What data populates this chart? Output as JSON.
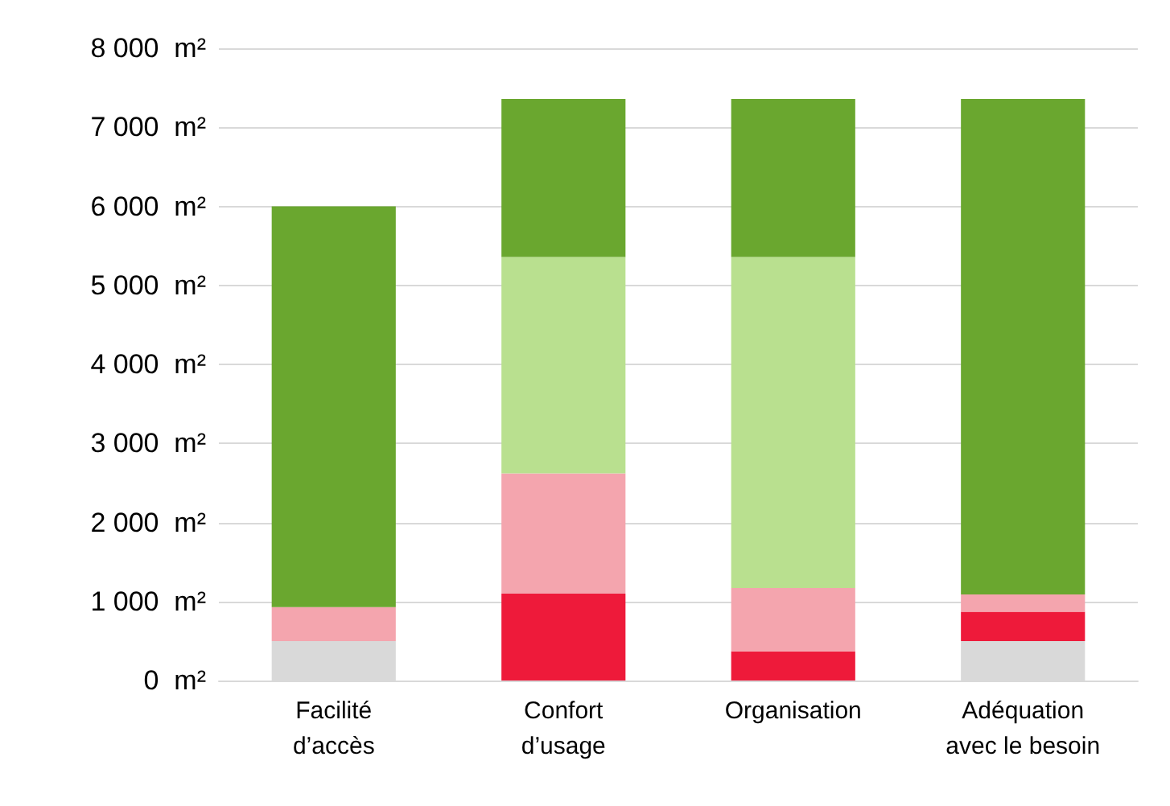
{
  "chart_data": {
    "type": "bar",
    "stacked": true,
    "grid": "y",
    "categories": [
      "Facilité\nd’accès",
      "Confort\nd’usage",
      "Organisation",
      "Adéquation\navec le besoin"
    ],
    "ylim": [
      0,
      8000
    ],
    "yticks": [
      {
        "value": 0,
        "label": "0  m²"
      },
      {
        "value": 1000,
        "label": "1 000  m²"
      },
      {
        "value": 2000,
        "label": "2 000  m²"
      },
      {
        "value": 3000,
        "label": "3 000  m²"
      },
      {
        "value": 4000,
        "label": "4 000  m²"
      },
      {
        "value": 5000,
        "label": "5 000  m²"
      },
      {
        "value": 6000,
        "label": "6 000  m²"
      },
      {
        "value": 7000,
        "label": "7 000  m²"
      },
      {
        "value": 8000,
        "label": "8 000  m²"
      }
    ],
    "series": [
      {
        "color": "#d9d9d9",
        "values": [
          500,
          null,
          null,
          500
        ]
      },
      {
        "color": "#ee1a3a",
        "values": [
          null,
          1100,
          370,
          370
        ]
      },
      {
        "color": "#f4a5ae",
        "values": [
          430,
          1520,
          800,
          220
        ]
      },
      {
        "color": "#b9e08f",
        "values": [
          null,
          2740,
          4190,
          null
        ]
      },
      {
        "color": "#6aa72f",
        "values": [
          5070,
          2000,
          2000,
          6270
        ]
      }
    ]
  }
}
